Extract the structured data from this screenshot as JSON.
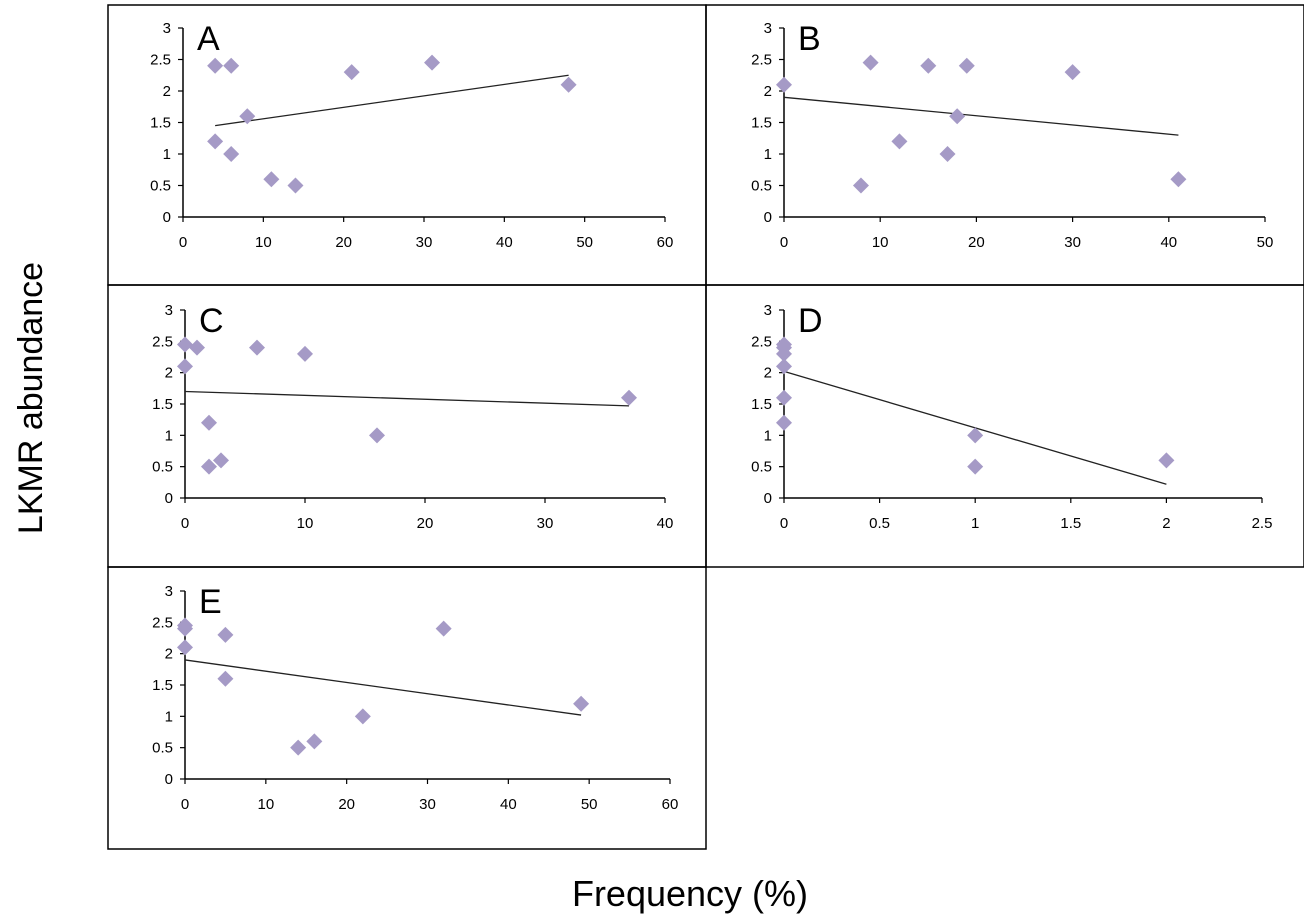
{
  "figure": {
    "ylabel": "LKMR abundance",
    "xlabel": "Frequency (%)",
    "marker_color": "#a59ac6"
  },
  "chart_data": [
    {
      "type": "scatter",
      "panel": "A",
      "xlim": [
        0,
        60
      ],
      "ylim": [
        0,
        3
      ],
      "x_ticks": [
        "0",
        "10",
        "20",
        "30",
        "40",
        "50",
        "60"
      ],
      "y_ticks": [
        "0",
        "0.5",
        "1",
        "1.5",
        "2",
        "2.5",
        "3"
      ],
      "points": [
        {
          "x": 4,
          "y": 2.4
        },
        {
          "x": 6,
          "y": 2.4
        },
        {
          "x": 8,
          "y": 1.6
        },
        {
          "x": 4,
          "y": 1.2
        },
        {
          "x": 6,
          "y": 1.0
        },
        {
          "x": 11,
          "y": 0.6
        },
        {
          "x": 14,
          "y": 0.5
        },
        {
          "x": 21,
          "y": 2.3
        },
        {
          "x": 31,
          "y": 2.45
        },
        {
          "x": 48,
          "y": 2.1
        }
      ],
      "trendline": [
        {
          "x": 4,
          "y": 1.45
        },
        {
          "x": 48,
          "y": 2.25
        }
      ]
    },
    {
      "type": "scatter",
      "panel": "B",
      "xlim": [
        0,
        50
      ],
      "ylim": [
        0,
        3
      ],
      "x_ticks": [
        "0",
        "10",
        "20",
        "30",
        "40",
        "50"
      ],
      "y_ticks": [
        "0",
        "0.5",
        "1",
        "1.5",
        "2",
        "2.5",
        "3"
      ],
      "points": [
        {
          "x": 0,
          "y": 2.1
        },
        {
          "x": 9,
          "y": 2.45
        },
        {
          "x": 15,
          "y": 2.4
        },
        {
          "x": 19,
          "y": 2.4
        },
        {
          "x": 30,
          "y": 2.3
        },
        {
          "x": 18,
          "y": 1.6
        },
        {
          "x": 12,
          "y": 1.2
        },
        {
          "x": 17,
          "y": 1.0
        },
        {
          "x": 8,
          "y": 0.5
        },
        {
          "x": 41,
          "y": 0.6
        }
      ],
      "trendline": [
        {
          "x": 0,
          "y": 1.9
        },
        {
          "x": 41,
          "y": 1.3
        }
      ]
    },
    {
      "type": "scatter",
      "panel": "C",
      "xlim": [
        0,
        40
      ],
      "ylim": [
        0,
        3
      ],
      "x_ticks": [
        "0",
        "10",
        "20",
        "30",
        "40"
      ],
      "y_ticks": [
        "0",
        "0.5",
        "1",
        "1.5",
        "2",
        "2.5",
        "3"
      ],
      "points": [
        {
          "x": 0,
          "y": 2.45
        },
        {
          "x": 1,
          "y": 2.4
        },
        {
          "x": 6,
          "y": 2.4
        },
        {
          "x": 10,
          "y": 2.3
        },
        {
          "x": 0,
          "y": 2.1
        },
        {
          "x": 2,
          "y": 1.2
        },
        {
          "x": 2,
          "y": 0.5
        },
        {
          "x": 3,
          "y": 0.6
        },
        {
          "x": 16,
          "y": 1.0
        },
        {
          "x": 37,
          "y": 1.6
        }
      ],
      "trendline": [
        {
          "x": 0,
          "y": 1.7
        },
        {
          "x": 37,
          "y": 1.47
        }
      ]
    },
    {
      "type": "scatter",
      "panel": "D",
      "xlim": [
        0,
        2.5
      ],
      "ylim": [
        0,
        3
      ],
      "x_ticks": [
        "0",
        "0.5",
        "1",
        "1.5",
        "2",
        "2.5"
      ],
      "y_ticks": [
        "0",
        "0.5",
        "1",
        "1.5",
        "2",
        "2.5",
        "3"
      ],
      "points": [
        {
          "x": 0,
          "y": 2.45
        },
        {
          "x": 0,
          "y": 2.4
        },
        {
          "x": 0,
          "y": 2.3
        },
        {
          "x": 0,
          "y": 2.1
        },
        {
          "x": 0,
          "y": 1.6
        },
        {
          "x": 0,
          "y": 1.2
        },
        {
          "x": 1,
          "y": 1.0
        },
        {
          "x": 1,
          "y": 0.5
        },
        {
          "x": 2,
          "y": 0.6
        }
      ],
      "trendline": [
        {
          "x": 0,
          "y": 2.02
        },
        {
          "x": 2,
          "y": 0.22
        }
      ]
    },
    {
      "type": "scatter",
      "panel": "E",
      "xlim": [
        0,
        60
      ],
      "ylim": [
        0,
        3
      ],
      "x_ticks": [
        "0",
        "10",
        "20",
        "30",
        "40",
        "50",
        "60"
      ],
      "y_ticks": [
        "0",
        "0.5",
        "1",
        "1.5",
        "2",
        "2.5",
        "3"
      ],
      "points": [
        {
          "x": 0,
          "y": 2.45
        },
        {
          "x": 0,
          "y": 2.4
        },
        {
          "x": 0,
          "y": 2.1
        },
        {
          "x": 5,
          "y": 2.3
        },
        {
          "x": 5,
          "y": 1.6
        },
        {
          "x": 32,
          "y": 2.4
        },
        {
          "x": 22,
          "y": 1.0
        },
        {
          "x": 14,
          "y": 0.5
        },
        {
          "x": 16,
          "y": 0.6
        },
        {
          "x": 49,
          "y": 1.2
        }
      ],
      "trendline": [
        {
          "x": 0,
          "y": 1.9
        },
        {
          "x": 49,
          "y": 1.02
        }
      ]
    }
  ]
}
